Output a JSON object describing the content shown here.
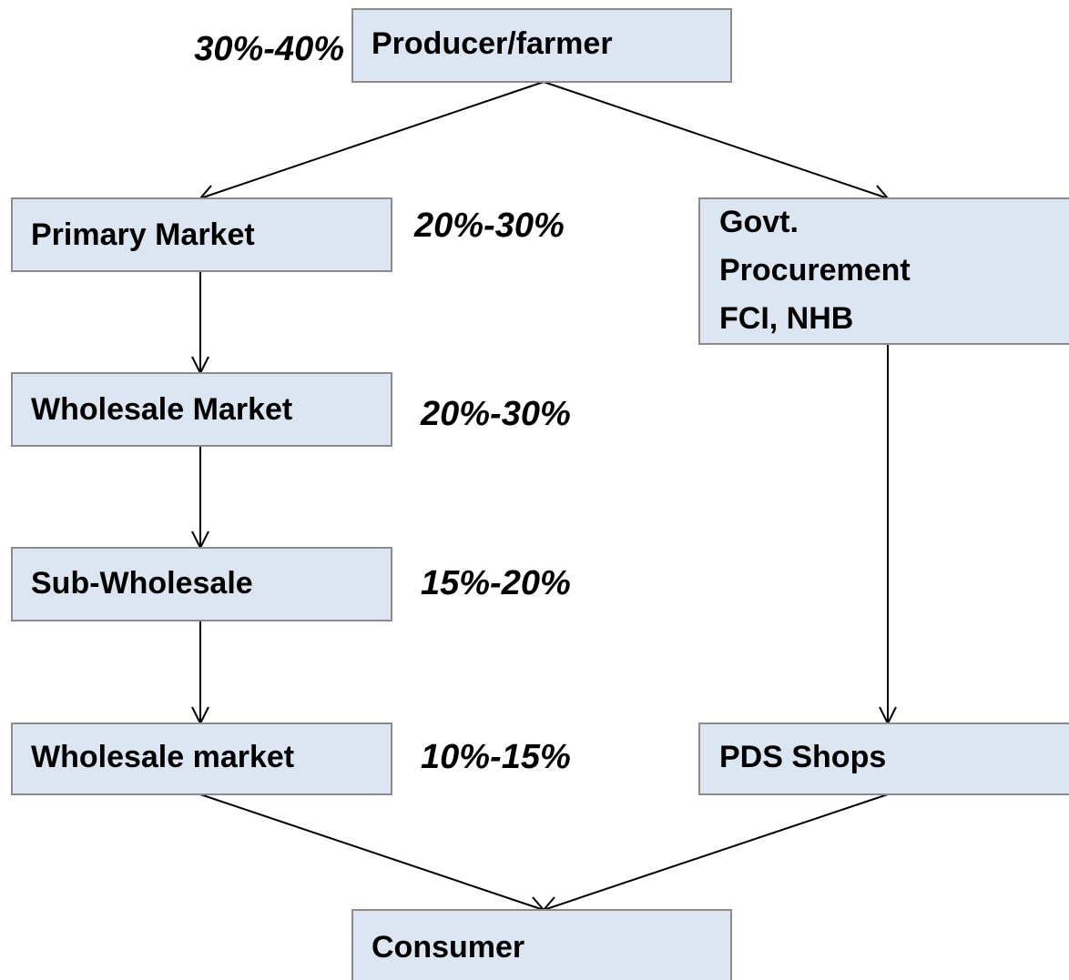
{
  "nodes": [
    {
      "label": "Producer/farmer"
    },
    {
      "label": "Primary Market"
    },
    {
      "lines": [
        "Govt.",
        "Procurement",
        "FCI, NHB"
      ]
    },
    {
      "label": "Wholesale Market"
    },
    {
      "label": "Sub-Wholesale"
    },
    {
      "label": "Wholesale market"
    },
    {
      "label": "PDS Shops"
    },
    {
      "label": "Consumer"
    }
  ],
  "margins": [
    "30%-40%",
    "20%-30%",
    "20%-30%",
    "15%-20%",
    "10%-15%"
  ]
}
